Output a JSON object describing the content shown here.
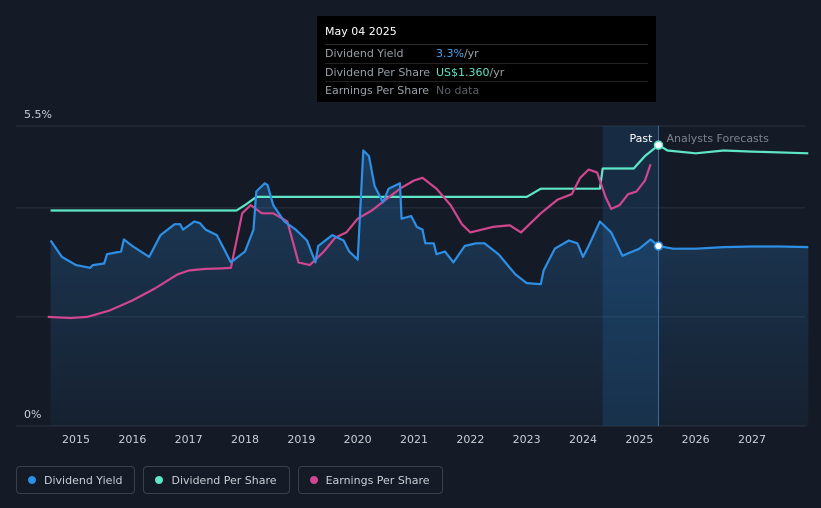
{
  "chart_data": {
    "type": "line",
    "y_top_label": "5.5%",
    "y_bottom_label": "0%",
    "ylim": [
      0,
      5.5
    ],
    "xlim": [
      2014.5,
      2028
    ],
    "x_ticks": [
      "2015",
      "2016",
      "2017",
      "2018",
      "2019",
      "2020",
      "2021",
      "2022",
      "2023",
      "2024",
      "2025",
      "2026",
      "2027"
    ],
    "forecast_start": 2025.34,
    "highlight_start": 2024.35,
    "past_label": "Past",
    "forecast_label": "Analysts Forecasts",
    "series": [
      {
        "name": "Dividend Yield",
        "color": "#2d8fe6",
        "points": [
          [
            2014.55,
            3.4
          ],
          [
            2014.75,
            3.1
          ],
          [
            2015.0,
            2.95
          ],
          [
            2015.25,
            2.9
          ],
          [
            2015.3,
            2.95
          ],
          [
            2015.5,
            2.98
          ],
          [
            2015.55,
            3.15
          ],
          [
            2015.8,
            3.2
          ],
          [
            2015.85,
            3.42
          ],
          [
            2016.0,
            3.3
          ],
          [
            2016.3,
            3.1
          ],
          [
            2016.5,
            3.5
          ],
          [
            2016.75,
            3.7
          ],
          [
            2016.85,
            3.7
          ],
          [
            2016.9,
            3.6
          ],
          [
            2017.1,
            3.75
          ],
          [
            2017.2,
            3.72
          ],
          [
            2017.3,
            3.6
          ],
          [
            2017.5,
            3.5
          ],
          [
            2017.6,
            3.3
          ],
          [
            2017.75,
            3.0
          ],
          [
            2018.0,
            3.2
          ],
          [
            2018.15,
            3.6
          ],
          [
            2018.2,
            4.3
          ],
          [
            2018.35,
            4.45
          ],
          [
            2018.4,
            4.42
          ],
          [
            2018.5,
            4.05
          ],
          [
            2018.7,
            3.75
          ],
          [
            2018.9,
            3.6
          ],
          [
            2019.1,
            3.4
          ],
          [
            2019.25,
            3.0
          ],
          [
            2019.3,
            3.3
          ],
          [
            2019.55,
            3.5
          ],
          [
            2019.75,
            3.4
          ],
          [
            2019.85,
            3.2
          ],
          [
            2020.0,
            3.05
          ],
          [
            2020.1,
            5.05
          ],
          [
            2020.2,
            4.95
          ],
          [
            2020.3,
            4.4
          ],
          [
            2020.45,
            4.1
          ],
          [
            2020.55,
            4.35
          ],
          [
            2020.75,
            4.45
          ],
          [
            2020.78,
            3.8
          ],
          [
            2020.95,
            3.85
          ],
          [
            2021.05,
            3.65
          ],
          [
            2021.15,
            3.6
          ],
          [
            2021.2,
            3.35
          ],
          [
            2021.35,
            3.35
          ],
          [
            2021.4,
            3.15
          ],
          [
            2021.55,
            3.2
          ],
          [
            2021.7,
            3.0
          ],
          [
            2021.9,
            3.3
          ],
          [
            2022.1,
            3.35
          ],
          [
            2022.25,
            3.35
          ],
          [
            2022.5,
            3.15
          ],
          [
            2022.8,
            2.78
          ],
          [
            2023.0,
            2.62
          ],
          [
            2023.25,
            2.6
          ],
          [
            2023.3,
            2.85
          ],
          [
            2023.5,
            3.25
          ],
          [
            2023.75,
            3.4
          ],
          [
            2023.9,
            3.35
          ],
          [
            2024.0,
            3.1
          ],
          [
            2024.1,
            3.3
          ],
          [
            2024.3,
            3.75
          ],
          [
            2024.5,
            3.55
          ],
          [
            2024.7,
            3.12
          ],
          [
            2025.0,
            3.25
          ],
          [
            2025.2,
            3.42
          ],
          [
            2025.34,
            3.3
          ],
          [
            2025.6,
            3.25
          ],
          [
            2026.0,
            3.25
          ],
          [
            2026.5,
            3.28
          ],
          [
            2027.0,
            3.29
          ],
          [
            2027.5,
            3.29
          ],
          [
            2028.0,
            3.28
          ]
        ]
      },
      {
        "name": "Dividend Per Share",
        "color": "#5ee6c6",
        "points": [
          [
            2014.55,
            3.95
          ],
          [
            2017.7,
            3.95
          ],
          [
            2017.85,
            3.95
          ],
          [
            2018.0,
            4.05
          ],
          [
            2018.2,
            4.2
          ],
          [
            2019.0,
            4.2
          ],
          [
            2020.0,
            4.2
          ],
          [
            2021.0,
            4.2
          ],
          [
            2022.0,
            4.2
          ],
          [
            2023.0,
            4.2
          ],
          [
            2023.25,
            4.35
          ],
          [
            2023.5,
            4.35
          ],
          [
            2024.0,
            4.35
          ],
          [
            2024.3,
            4.35
          ],
          [
            2024.35,
            4.72
          ],
          [
            2024.9,
            4.72
          ],
          [
            2025.1,
            4.95
          ],
          [
            2025.34,
            5.15
          ],
          [
            2025.5,
            5.05
          ],
          [
            2026.0,
            5.0
          ],
          [
            2026.5,
            5.05
          ],
          [
            2027.0,
            5.03
          ],
          [
            2028.0,
            5.0
          ]
        ]
      },
      {
        "name": "Earnings Per Share",
        "color": "#d0468f",
        "points": [
          [
            2014.5,
            2.0
          ],
          [
            2014.9,
            1.98
          ],
          [
            2015.2,
            2.0
          ],
          [
            2015.6,
            2.12
          ],
          [
            2016.0,
            2.3
          ],
          [
            2016.4,
            2.52
          ],
          [
            2016.8,
            2.78
          ],
          [
            2017.0,
            2.85
          ],
          [
            2017.3,
            2.88
          ],
          [
            2017.6,
            2.89
          ],
          [
            2017.75,
            2.9
          ],
          [
            2017.95,
            3.9
          ],
          [
            2018.1,
            4.05
          ],
          [
            2018.3,
            3.9
          ],
          [
            2018.5,
            3.9
          ],
          [
            2018.75,
            3.75
          ],
          [
            2018.95,
            3.0
          ],
          [
            2019.15,
            2.95
          ],
          [
            2019.4,
            3.2
          ],
          [
            2019.6,
            3.45
          ],
          [
            2019.8,
            3.55
          ],
          [
            2020.0,
            3.8
          ],
          [
            2020.25,
            3.95
          ],
          [
            2020.5,
            4.15
          ],
          [
            2020.75,
            4.35
          ],
          [
            2021.0,
            4.5
          ],
          [
            2021.15,
            4.55
          ],
          [
            2021.4,
            4.35
          ],
          [
            2021.65,
            4.05
          ],
          [
            2021.85,
            3.7
          ],
          [
            2022.0,
            3.55
          ],
          [
            2022.4,
            3.65
          ],
          [
            2022.7,
            3.68
          ],
          [
            2022.9,
            3.55
          ],
          [
            2023.25,
            3.9
          ],
          [
            2023.55,
            4.15
          ],
          [
            2023.8,
            4.25
          ],
          [
            2023.95,
            4.55
          ],
          [
            2024.1,
            4.7
          ],
          [
            2024.25,
            4.65
          ],
          [
            2024.4,
            4.2
          ],
          [
            2024.5,
            3.98
          ],
          [
            2024.65,
            4.05
          ],
          [
            2024.8,
            4.25
          ],
          [
            2024.95,
            4.3
          ],
          [
            2025.1,
            4.5
          ],
          [
            2025.2,
            4.8
          ]
        ]
      }
    ],
    "highlight_points": [
      {
        "series": "Dividend Per Share",
        "x": 2025.34,
        "y": 5.15
      },
      {
        "series": "Dividend Yield",
        "x": 2025.34,
        "y": 3.3
      }
    ],
    "legend": [
      "Dividend Yield",
      "Dividend Per Share",
      "Earnings Per Share"
    ],
    "legend_placement": "bottom-left",
    "grid": true
  },
  "tooltip": {
    "date": "May 04 2025",
    "rows": [
      {
        "label": "Dividend Yield",
        "value": "3.3%",
        "unit": " /yr",
        "color": "#4aa3f0"
      },
      {
        "label": "Dividend Per Share",
        "value": "US$1.360",
        "unit": " /yr",
        "color": "#5ee6c6"
      },
      {
        "label": "Earnings Per Share",
        "value": "No data"
      }
    ]
  },
  "legend": [
    {
      "label": "Dividend Yield",
      "color": "#2d8fe6"
    },
    {
      "label": "Dividend Per Share",
      "color": "#5ee6c6"
    },
    {
      "label": "Earnings Per Share",
      "color": "#d0468f"
    }
  ]
}
